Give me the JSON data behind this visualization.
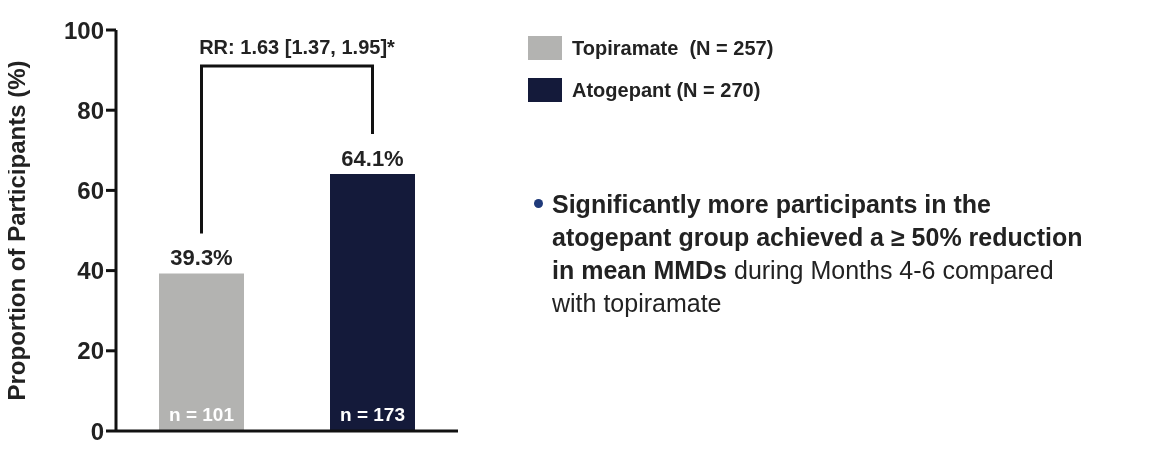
{
  "chart_data": {
    "type": "bar",
    "ylabel": "Proportion of Participants (%)",
    "categories": [
      null,
      null
    ],
    "stacked": true,
    "series": [
      {
        "name": "Topiramate  (N = 257)",
        "color": "#b3b3b1",
        "values": [
          39.3,
          null
        ],
        "value_labels": [
          "39.3%",
          null
        ]
      },
      {
        "name": "Atogepant (N = 270)",
        "color": "#141a3a",
        "values": [
          null,
          64.1
        ],
        "value_labels": [
          null,
          "64.1%"
        ]
      }
    ],
    "ylim": [
      0,
      100
    ],
    "yticks": [
      0,
      20,
      40,
      60,
      80,
      100
    ],
    "legend": "top right",
    "tick_labels": "y",
    "annotations": [
      "RR: 1.63 [1.37, 1.95]*",
      "n = 101",
      "n = 173",
      "Significantly more participants in the atogepant group achieved a ≥ 50% reduction in mean MMDs",
      "during Months 4-6 compared with topiramate"
    ]
  }
}
